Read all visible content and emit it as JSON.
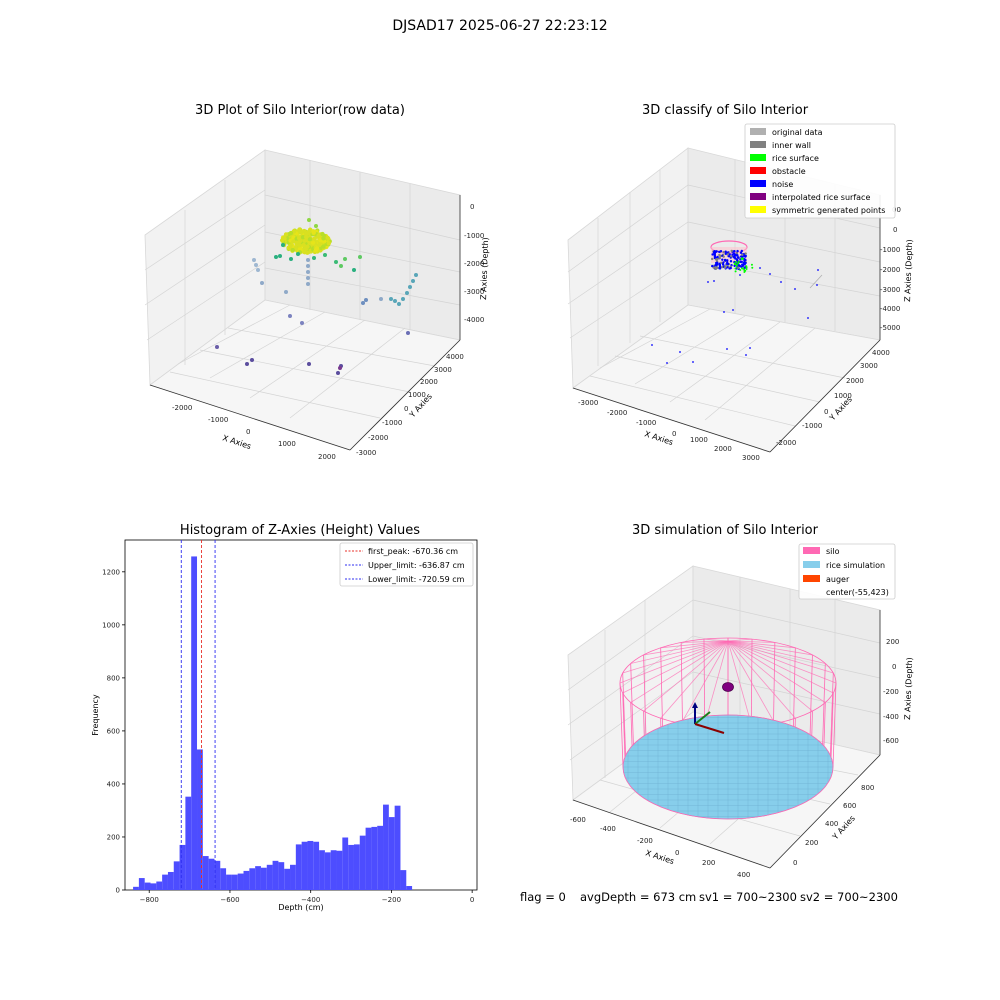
{
  "suptitle": "DJSAD17 2025-06-27 22:23:12",
  "colors": {
    "blue_bars": "#4d4dff",
    "red_peak": "#e8302a",
    "blue_limit": "#2d2df0",
    "silo": "#ff69b4",
    "rice": "#87ceeb",
    "auger": "#ff4500",
    "inner_wall": "#808080",
    "original": "#b0b0b0",
    "rice_surface": "#00ff00",
    "obstacle": "#ff0000",
    "noise": "#0000ff",
    "interpolated": "#800080",
    "symmetric": "#ffff00"
  },
  "plot1": {
    "title": "3D Plot of Silo Interior(row data)",
    "xlabel": "X Axies",
    "ylabel": "Y Axies",
    "zlabel": "Z Axies (Depth)",
    "x_ticks": [
      "-2000",
      "-1000",
      "0",
      "1000",
      "2000"
    ],
    "y_ticks": [
      "-3000",
      "-2000",
      "-1000",
      "0",
      "1000",
      "2000",
      "3000",
      "4000"
    ],
    "z_ticks": [
      "0",
      "-1000",
      "-2000",
      "-3000",
      "-4000"
    ]
  },
  "plot2": {
    "title": "3D classify of Silo Interior",
    "xlabel": "X Axies",
    "ylabel": "Y Axies",
    "zlabel": "Z Axies (Depth)",
    "x_ticks": [
      "-3000",
      "-2000",
      "-1000",
      "0",
      "1000",
      "2000",
      "3000"
    ],
    "y_ticks": [
      "-2000",
      "-1000",
      "0",
      "1000",
      "2000",
      "3000",
      "4000"
    ],
    "z_ticks": [
      "1000",
      "0",
      "-1000",
      "-2000",
      "-3000",
      "-4000",
      "-5000"
    ],
    "z_top_partial": "00",
    "legend": [
      {
        "label": "original data",
        "color": "#b0b0b0"
      },
      {
        "label": "inner wall",
        "color": "#808080"
      },
      {
        "label": "rice surface",
        "color": "#00ff00"
      },
      {
        "label": "obstacle",
        "color": "#ff0000"
      },
      {
        "label": "noise",
        "color": "#0000ff"
      },
      {
        "label": "interpolated rice surface",
        "color": "#800080"
      },
      {
        "label": "symmetric generated points",
        "color": "#ffff00"
      }
    ]
  },
  "plot4": {
    "title": "3D simulation of Silo Interior",
    "xlabel": "X Axies",
    "ylabel": "Y Axies",
    "zlabel": "Z Axies (Depth)",
    "x_ticks": [
      "-600",
      "-400",
      "-200",
      "0",
      "200",
      "400"
    ],
    "y_ticks": [
      "0",
      "200",
      "400",
      "600",
      "800"
    ],
    "z_ticks": [
      "200",
      "0",
      "-200",
      "-400",
      "-600"
    ],
    "legend": [
      {
        "label": "silo",
        "color": "#ff69b4"
      },
      {
        "label": "rice simulation",
        "color": "#87ceeb"
      },
      {
        "label": "auger",
        "color": "#ff4500"
      },
      {
        "label": "center(-55,423)",
        "color": ""
      }
    ]
  },
  "bottom_text": {
    "flag": "flag = 0",
    "avg": "avgDepth = 673 cm",
    "sv1": "sv1 = 700~2300",
    "sv2": "sv2 = 700~2300"
  },
  "chart_data": {
    "type": "bar",
    "title": "Histogram of Z-Axies (Height) Values",
    "xlabel": "Depth (cm)",
    "ylabel": "Frequency",
    "xlim": [
      -860,
      12
    ],
    "ylim": [
      0,
      1320
    ],
    "x_ticks": [
      -800,
      -600,
      -400,
      -200,
      0
    ],
    "y_ticks": [
      0,
      200,
      400,
      600,
      800,
      1000,
      1200
    ],
    "bin_start": -840,
    "bin_width": 14.4,
    "values": [
      12,
      45,
      28,
      25,
      32,
      58,
      68,
      108,
      170,
      352,
      1258,
      530,
      128,
      118,
      110,
      82,
      58,
      58,
      62,
      72,
      82,
      90,
      84,
      95,
      110,
      105,
      80,
      95,
      172,
      182,
      185,
      182,
      150,
      142,
      150,
      148,
      198,
      170,
      172,
      205,
      235,
      238,
      242,
      322,
      275,
      318,
      75,
      15
    ],
    "lines": [
      {
        "name": "first_peak: -670.36 cm",
        "x": -670.36,
        "color": "#e8302a"
      },
      {
        "name": "Upper_limit: -636.87 cm",
        "x": -636.87,
        "color": "#2d2df0"
      },
      {
        "name": "Lower_limit: -720.59 cm",
        "x": -720.59,
        "color": "#2d2df0"
      }
    ],
    "legend_position": "top-right"
  }
}
